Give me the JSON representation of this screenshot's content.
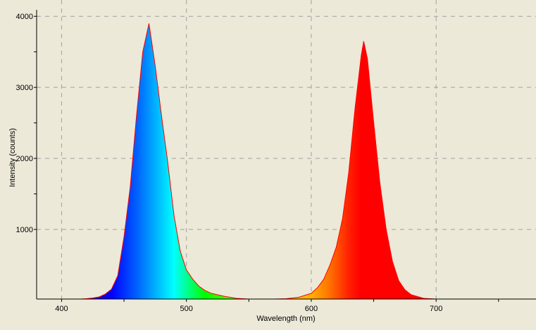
{
  "chart_data": {
    "type": "area",
    "title": "",
    "xlabel": "Wavelength (nm)",
    "ylabel": "Intensity (counts)",
    "xlim": [
      380,
      780
    ],
    "ylim": [
      20,
      4230
    ],
    "xticks": [
      400,
      500,
      600,
      700
    ],
    "xminor": [
      450,
      550,
      650,
      750
    ],
    "yticks": [
      1000,
      2000,
      3000,
      4000
    ],
    "yminor": [
      1500,
      2500,
      3500
    ],
    "grid": true,
    "fill": "spectral-color gradient by wavelength",
    "outline_color": "#ff0000",
    "background": "#ece9d8",
    "series": [
      {
        "x": [
          415,
          420,
          425,
          430,
          435,
          440,
          445,
          450,
          455,
          460,
          465,
          470,
          475,
          480,
          485,
          490,
          495,
          500,
          505,
          510,
          515,
          520,
          530,
          540,
          550,
          560,
          570,
          580,
          590,
          600,
          605,
          610,
          615,
          620,
          625,
          630,
          635,
          640,
          642,
          645,
          650,
          655,
          660,
          665,
          670,
          675,
          680,
          690,
          700,
          710
        ],
        "y": [
          20,
          25,
          35,
          50,
          90,
          160,
          350,
          900,
          1600,
          2600,
          3500,
          3900,
          3300,
          2600,
          1950,
          1200,
          700,
          430,
          300,
          200,
          140,
          100,
          60,
          30,
          20,
          20,
          20,
          25,
          45,
          100,
          180,
          300,
          500,
          750,
          1150,
          1800,
          2700,
          3450,
          3650,
          3400,
          2500,
          1650,
          1000,
          550,
          280,
          150,
          80,
          30,
          20,
          20
        ]
      }
    ]
  }
}
